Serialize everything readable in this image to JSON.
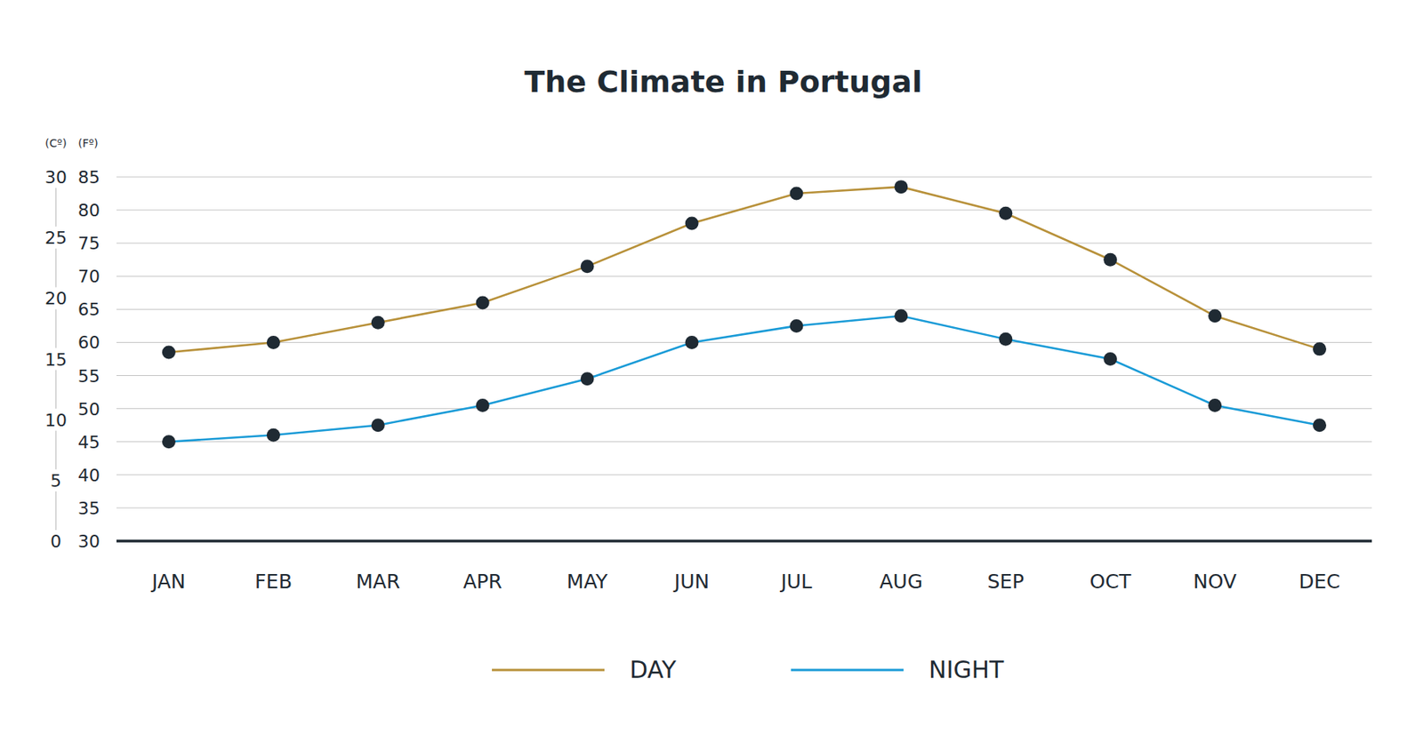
{
  "chart_data": {
    "type": "line",
    "title": "The Climate in Portugal",
    "y_label": "(Fº)",
    "y2_label": "(Cº)",
    "categories": [
      "JAN",
      "FEB",
      "MAR",
      "APR",
      "MAY",
      "JUN",
      "JUL",
      "AUG",
      "SEP",
      "OCT",
      "NOV",
      "DEC"
    ],
    "series": [
      {
        "name": "DAY",
        "color": "#b8913a",
        "marker": "circle",
        "values": [
          58.5,
          60,
          63,
          66,
          71.5,
          78,
          82.5,
          83.5,
          79.5,
          72.5,
          64,
          59
        ]
      },
      {
        "name": "NIGHT",
        "color": "#1a9bd7",
        "marker": "circle",
        "values": [
          45,
          46,
          47.5,
          50.5,
          54.5,
          60,
          62.5,
          64,
          60.5,
          57.5,
          50.5,
          47.5
        ]
      }
    ],
    "ylim": [
      30,
      85
    ],
    "yticks": [
      30,
      35,
      40,
      45,
      50,
      55,
      60,
      65,
      70,
      75,
      80,
      85
    ],
    "y2lim": [
      0,
      30
    ],
    "y2ticks": [
      0,
      5,
      10,
      15,
      20,
      25,
      30
    ],
    "grid": true,
    "legend": "bottom"
  }
}
